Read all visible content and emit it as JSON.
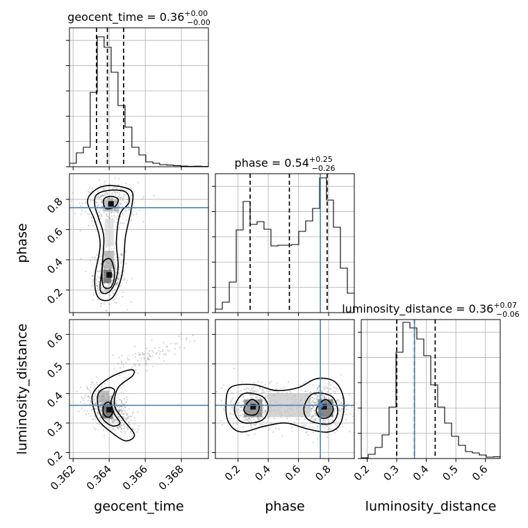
{
  "chart_data": {
    "type": "corner",
    "parameters": [
      "geocent_time",
      "phase",
      "luminosity_distance"
    ],
    "truths": {
      "phase": 0.745,
      "luminosity_distance": 0.36
    },
    "truth_color": "#4a82b4",
    "grid": true,
    "axes": {
      "geocent_time": {
        "range": [
          0.3618,
          0.3695
        ],
        "ticks": [
          0.362,
          0.364,
          0.366,
          0.368
        ],
        "tick_labels": [
          "0.362",
          "0.364",
          "0.366",
          "0.368"
        ]
      },
      "phase": {
        "range": [
          0.05,
          0.97
        ],
        "ticks": [
          0.2,
          0.4,
          0.6,
          0.8
        ],
        "tick_labels": [
          "0.2",
          "0.4",
          "0.6",
          "0.8"
        ]
      },
      "luminosity_distance": {
        "range": [
          0.18,
          0.65
        ],
        "ticks": [
          0.2,
          0.3,
          0.4,
          0.5,
          0.6
        ],
        "tick_labels": [
          "0.2",
          "0.3",
          "0.4",
          "0.5",
          "0.6"
        ]
      }
    },
    "titles": [
      {
        "param": "geocent_time",
        "prefix": "geocent_time = 0.36",
        "sup": "+0.00",
        "sub": "−0.00"
      },
      {
        "param": "phase",
        "prefix": "phase = 0.54",
        "sup": "+0.25",
        "sub": "−0.26"
      },
      {
        "param": "luminosity_distance",
        "prefix": "luminosity_distance = 0.36",
        "sup": "+0.07",
        "sub": "−0.06"
      }
    ],
    "histograms": [
      {
        "param": "geocent_time",
        "edges": [
          0.3618,
          0.36218,
          0.36257,
          0.36295,
          0.36334,
          0.36372,
          0.36411,
          0.36449,
          0.36488,
          0.36526,
          0.36565,
          0.36603,
          0.36642,
          0.3668,
          0.36719,
          0.36757,
          0.36796,
          0.36834,
          0.36873,
          0.36911,
          0.3695
        ],
        "counts": [
          0.025,
          0.1,
          0.14,
          0.535,
          0.935,
          0.86,
          0.68,
          0.44,
          0.285,
          0.14,
          0.085,
          0.035,
          0.025,
          0.015,
          0.012,
          0.008,
          0.005,
          0.003,
          0.004,
          0.002
        ],
        "quantiles": [
          0.3633,
          0.3639,
          0.3648
        ]
      },
      {
        "param": "phase",
        "edges": [
          0.05,
          0.096,
          0.142,
          0.188,
          0.234,
          0.28,
          0.326,
          0.372,
          0.418,
          0.464,
          0.51,
          0.556,
          0.602,
          0.648,
          0.694,
          0.74,
          0.786,
          0.832,
          0.878,
          0.924,
          0.97
        ],
        "counts": [
          0.025,
          0.075,
          0.22,
          0.595,
          0.8,
          0.635,
          0.655,
          0.6,
          0.48,
          0.485,
          0.485,
          0.49,
          0.585,
          0.66,
          0.75,
          0.97,
          0.81,
          0.615,
          0.32,
          0.14
        ],
        "quantiles": [
          0.28,
          0.54,
          0.79
        ]
      },
      {
        "param": "luminosity_distance",
        "edges": [
          0.18,
          0.2035,
          0.227,
          0.2505,
          0.274,
          0.2975,
          0.321,
          0.3445,
          0.368,
          0.3915,
          0.415,
          0.4385,
          0.462,
          0.4855,
          0.509,
          0.5325,
          0.556,
          0.5795,
          0.603,
          0.6265,
          0.65
        ],
        "counts": [
          0.005,
          0.03,
          0.08,
          0.17,
          0.37,
          0.765,
          0.98,
          0.94,
          0.86,
          0.74,
          0.53,
          0.37,
          0.255,
          0.16,
          0.095,
          0.05,
          0.04,
          0.025,
          0.01,
          0.012
        ],
        "quantiles": [
          0.3,
          0.36,
          0.43
        ]
      }
    ],
    "scatter_panels": [
      {
        "x": "geocent_time",
        "y": "phase",
        "clusters": [
          {
            "cx": 0.364,
            "cy": 0.3,
            "sx": 0.00045,
            "sy": 0.09,
            "weight": 0.55
          },
          {
            "cx": 0.3641,
            "cy": 0.77,
            "sx": 0.00075,
            "sy": 0.07,
            "weight": 0.45
          }
        ],
        "density": [
          {
            "x": 0.3639,
            "y": 0.29,
            "w": 0.00045,
            "h": 0.09,
            "level": 0.85
          },
          {
            "x": 0.364,
            "y": 0.4,
            "w": 0.00055,
            "h": 0.12,
            "level": 0.45
          },
          {
            "x": 0.3641,
            "y": 0.76,
            "w": 0.0009,
            "h": 0.08,
            "level": 0.4
          },
          {
            "x": 0.364,
            "y": 0.58,
            "w": 0.0005,
            "h": 0.18,
            "level": 0.2
          }
        ],
        "contours": [
          [
            [
              0.3631,
              0.85
            ],
            [
              0.3638,
              0.89
            ],
            [
              0.3648,
              0.88
            ],
            [
              0.3653,
              0.84
            ],
            [
              0.3652,
              0.72
            ],
            [
              0.3649,
              0.55
            ],
            [
              0.3648,
              0.38
            ],
            [
              0.3646,
              0.25
            ],
            [
              0.3641,
              0.14
            ],
            [
              0.3634,
              0.15
            ],
            [
              0.3632,
              0.28
            ],
            [
              0.3635,
              0.5
            ],
            [
              0.3632,
              0.66
            ],
            [
              0.3628,
              0.78
            ]
          ],
          [
            [
              0.3633,
              0.83
            ],
            [
              0.364,
              0.86
            ],
            [
              0.3649,
              0.85
            ],
            [
              0.3651,
              0.78
            ],
            [
              0.3646,
              0.7
            ],
            [
              0.3644,
              0.52
            ],
            [
              0.3645,
              0.36
            ],
            [
              0.3643,
              0.24
            ],
            [
              0.3639,
              0.18
            ],
            [
              0.3635,
              0.2
            ],
            [
              0.3636,
              0.34
            ],
            [
              0.3637,
              0.55
            ],
            [
              0.3634,
              0.68
            ],
            [
              0.3632,
              0.76
            ]
          ],
          [
            [
              0.3637,
              0.8
            ],
            [
              0.3641,
              0.82
            ],
            [
              0.3645,
              0.8
            ],
            [
              0.3643,
              0.75
            ],
            [
              0.3638,
              0.74
            ]
          ],
          [
            [
              0.3637,
              0.39
            ],
            [
              0.3641,
              0.4
            ],
            [
              0.3643,
              0.3
            ],
            [
              0.3641,
              0.22
            ],
            [
              0.3637,
              0.22
            ],
            [
              0.3636,
              0.3
            ]
          ]
        ]
      },
      {
        "x": "geocent_time",
        "y": "luminosity_distance",
        "clusters": [
          {
            "cx": 0.364,
            "cy": 0.345,
            "sx": 0.0006,
            "sy": 0.03,
            "weight": 0.85,
            "slope": -55
          },
          {
            "cx": 0.366,
            "cy": 0.52,
            "sx": 0.0012,
            "sy": 0.02,
            "weight": 0.15,
            "slope": 45
          }
        ],
        "density": [
          {
            "x": 0.3639,
            "y": 0.34,
            "w": 0.0006,
            "h": 0.05,
            "level": 0.8
          },
          {
            "x": 0.3637,
            "y": 0.39,
            "w": 0.0006,
            "h": 0.04,
            "level": 0.45
          }
        ],
        "contours": [
          [
            [
              0.3631,
              0.4
            ],
            [
              0.3637,
              0.44
            ],
            [
              0.3646,
              0.47
            ],
            [
              0.3653,
              0.48
            ],
            [
              0.3653,
              0.46
            ],
            [
              0.3645,
              0.42
            ],
            [
              0.3643,
              0.36
            ],
            [
              0.3648,
              0.31
            ],
            [
              0.3654,
              0.26
            ],
            [
              0.3649,
              0.24
            ],
            [
              0.3641,
              0.27
            ],
            [
              0.3634,
              0.31
            ],
            [
              0.3631,
              0.36
            ]
          ],
          [
            [
              0.3634,
              0.4
            ],
            [
              0.3639,
              0.42
            ],
            [
              0.3643,
              0.41
            ],
            [
              0.3641,
              0.37
            ],
            [
              0.3643,
              0.33
            ],
            [
              0.3646,
              0.3
            ],
            [
              0.3642,
              0.29
            ],
            [
              0.3637,
              0.31
            ],
            [
              0.3634,
              0.35
            ]
          ],
          [
            [
              0.3637,
              0.36
            ],
            [
              0.364,
              0.37
            ],
            [
              0.3642,
              0.34
            ],
            [
              0.364,
              0.32
            ],
            [
              0.3637,
              0.33
            ]
          ]
        ]
      },
      {
        "x": "phase",
        "y": "luminosity_distance",
        "clusters": [
          {
            "cx": 0.3,
            "cy": 0.355,
            "sx": 0.08,
            "sy": 0.04,
            "weight": 0.45
          },
          {
            "cx": 0.77,
            "cy": 0.355,
            "sx": 0.07,
            "sy": 0.04,
            "weight": 0.55
          },
          {
            "cx": 0.53,
            "cy": 0.36,
            "sx": 0.18,
            "sy": 0.035,
            "weight": 0.25
          }
        ],
        "density": [
          {
            "x": 0.3,
            "y": 0.35,
            "w": 0.12,
            "h": 0.06,
            "level": 0.7
          },
          {
            "x": 0.78,
            "y": 0.35,
            "w": 0.1,
            "h": 0.06,
            "level": 0.8
          },
          {
            "x": 0.54,
            "y": 0.36,
            "w": 0.28,
            "h": 0.08,
            "level": 0.3
          }
        ],
        "contours": [
          [
            [
              0.12,
              0.36
            ],
            [
              0.15,
              0.42
            ],
            [
              0.3,
              0.43
            ],
            [
              0.45,
              0.41
            ],
            [
              0.6,
              0.42
            ],
            [
              0.72,
              0.45
            ],
            [
              0.84,
              0.44
            ],
            [
              0.9,
              0.38
            ],
            [
              0.88,
              0.3
            ],
            [
              0.8,
              0.27
            ],
            [
              0.66,
              0.28
            ],
            [
              0.52,
              0.3
            ],
            [
              0.38,
              0.29
            ],
            [
              0.22,
              0.27
            ],
            [
              0.14,
              0.3
            ]
          ],
          [
            [
              0.18,
              0.36
            ],
            [
              0.24,
              0.4
            ],
            [
              0.36,
              0.39
            ],
            [
              0.4,
              0.35
            ],
            [
              0.36,
              0.31
            ],
            [
              0.25,
              0.3
            ],
            [
              0.19,
              0.32
            ]
          ],
          [
            [
              0.64,
              0.36
            ],
            [
              0.7,
              0.4
            ],
            [
              0.82,
              0.39
            ],
            [
              0.86,
              0.34
            ],
            [
              0.82,
              0.3
            ],
            [
              0.72,
              0.3
            ],
            [
              0.65,
              0.32
            ]
          ],
          [
            [
              0.24,
              0.35
            ],
            [
              0.29,
              0.38
            ],
            [
              0.34,
              0.36
            ],
            [
              0.32,
              0.33
            ],
            [
              0.26,
              0.33
            ]
          ],
          [
            [
              0.72,
              0.35
            ],
            [
              0.78,
              0.38
            ],
            [
              0.83,
              0.35
            ],
            [
              0.8,
              0.32
            ],
            [
              0.74,
              0.32
            ]
          ]
        ]
      }
    ],
    "xlabels": [
      "geocent_time",
      "phase",
      "luminosity_distance"
    ],
    "ylabels": [
      "phase",
      "luminosity_distance"
    ]
  }
}
